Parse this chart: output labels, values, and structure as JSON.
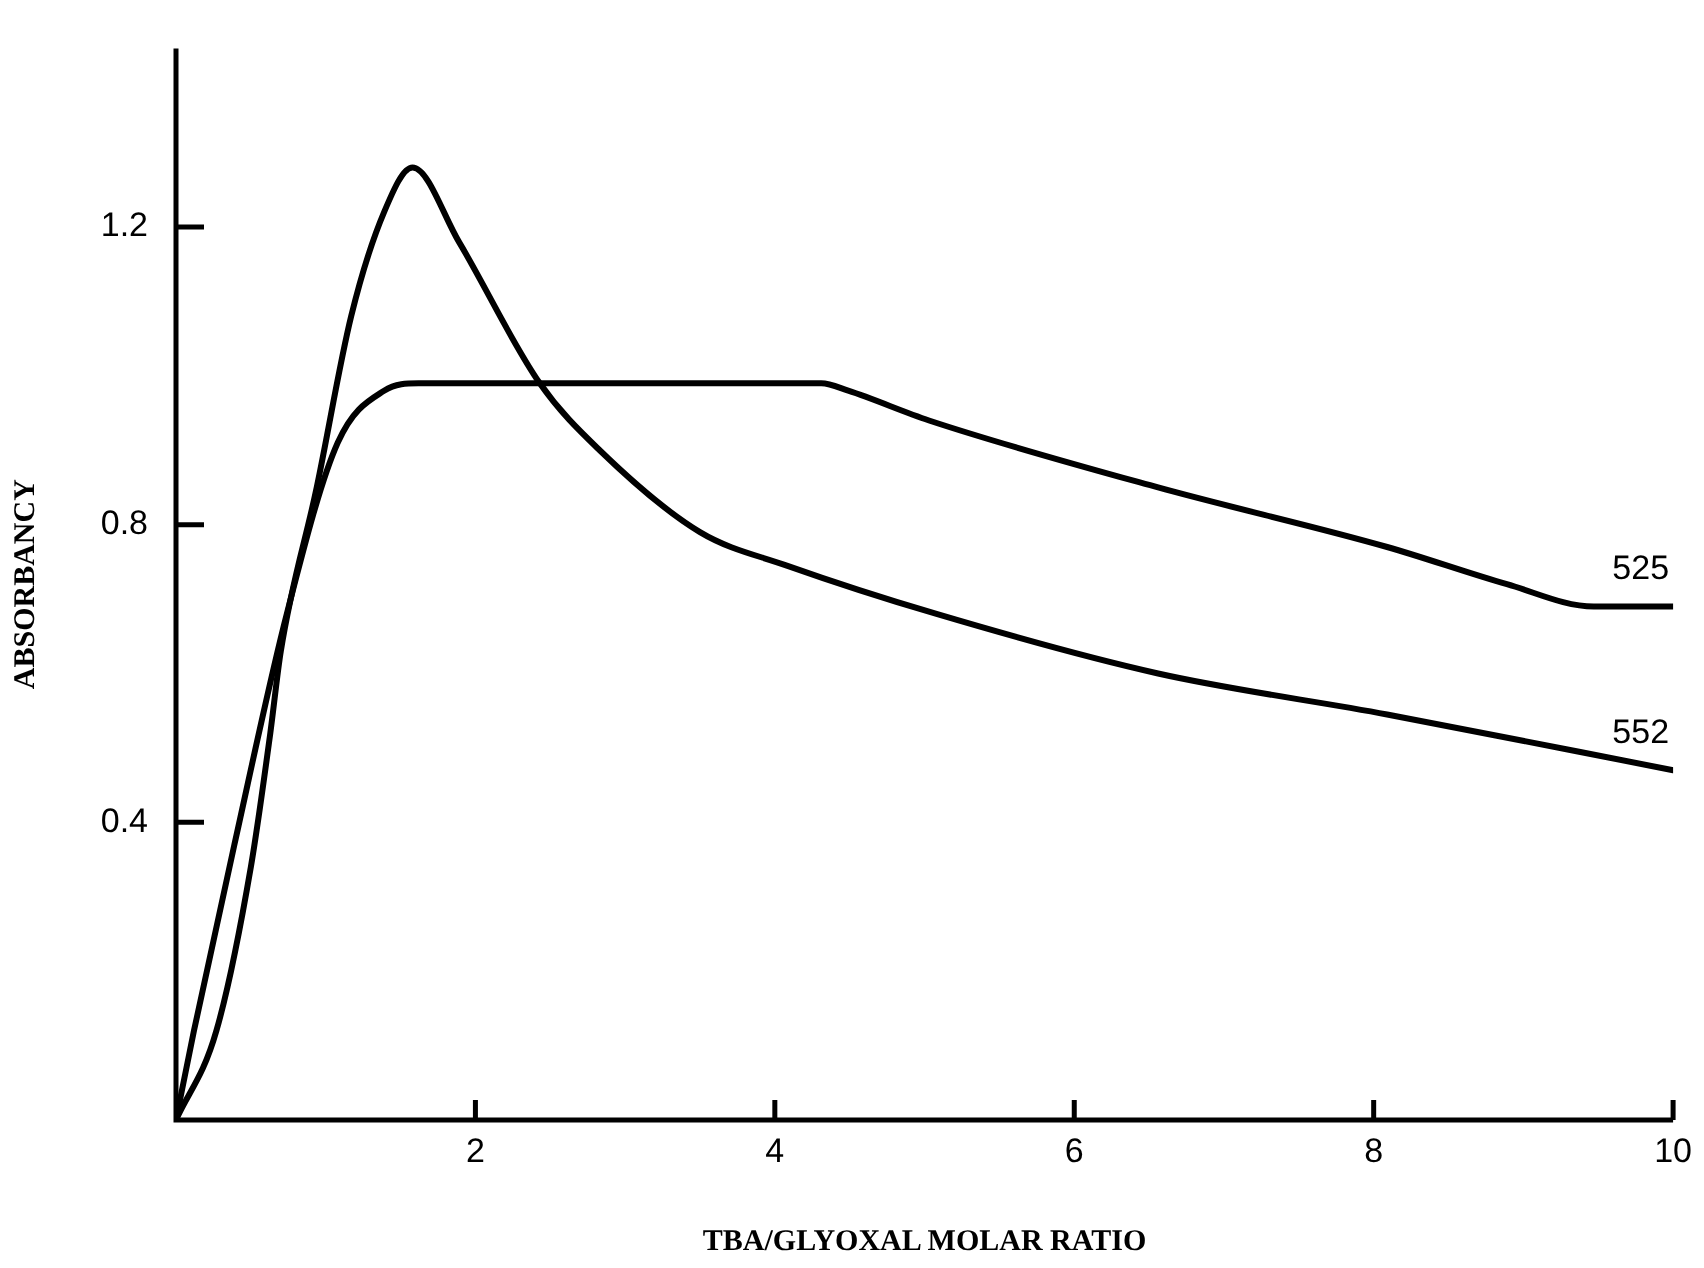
{
  "chart_data": {
    "type": "line",
    "xlabel": "TBA/GLYOXAL MOLAR RATIO",
    "ylabel": "ABSORBANCY",
    "xlim": [
      0,
      10
    ],
    "xticks": [
      2,
      4,
      6,
      8,
      10
    ],
    "ylim": [
      0,
      1.44
    ],
    "yticks": [
      0.4,
      0.8,
      1.2
    ],
    "grid": false,
    "legend": false,
    "marker": "none",
    "line_style": "solid",
    "series": [
      {
        "name": "525",
        "color": "#000000",
        "x": [
          0,
          0.12,
          0.39,
          0.74,
          1.08,
          1.39,
          1.62,
          2.5,
          3.5,
          4.31,
          4.49,
          5.03,
          6.56,
          8.09,
          8.89,
          9.47,
          10
        ],
        "values": [
          0,
          0.12,
          0.37,
          0.68,
          0.91,
          0.98,
          0.99,
          0.99,
          0.99,
          0.99,
          0.98,
          0.94,
          0.85,
          0.77,
          0.72,
          0.69,
          0.69
        ]
      },
      {
        "name": "552",
        "color": "#000000",
        "x": [
          0,
          0.27,
          0.5,
          0.63,
          0.7,
          0.94,
          1.17,
          1.39,
          1.58,
          1.89,
          2.43,
          2.83,
          3.5,
          4.08,
          5.08,
          6.56,
          8.09,
          10
        ],
        "values": [
          0,
          0.12,
          0.34,
          0.52,
          0.63,
          0.85,
          1.08,
          1.22,
          1.28,
          1.18,
          0.99,
          0.9,
          0.79,
          0.745,
          0.68,
          0.6,
          0.545,
          0.47
        ]
      }
    ]
  }
}
